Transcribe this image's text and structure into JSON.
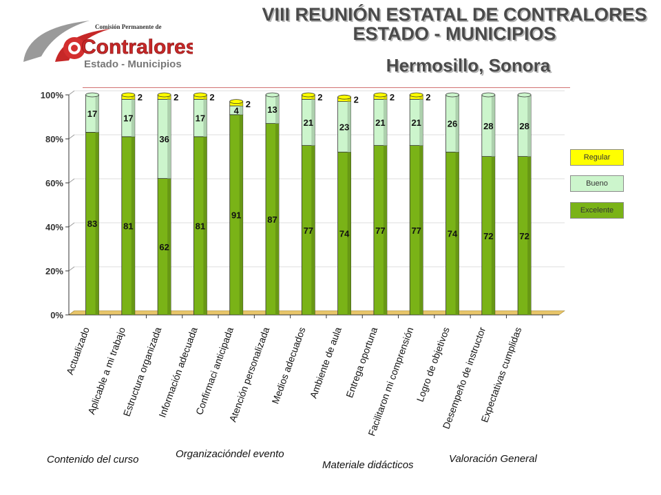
{
  "header": {
    "title_line1": "VIII REUNIÓN ESTATAL DE CONTRALORES",
    "title_line2": "ESTADO - MUNICIPIOS",
    "title_line3": "Hermosillo, Sonora"
  },
  "logo": {
    "line_small": "Comisión Permanente de",
    "line_big": "Contralores",
    "line_sub": "Estado - Municipios"
  },
  "chart_data": {
    "type": "bar",
    "stacked": true,
    "percent": true,
    "categories": [
      "Actualizado",
      "Aplicable a mi trabajo",
      "Estructura organizada",
      "Información adecuada",
      "Confirmaci anticipada",
      "Atención personalizada",
      "Medios adecuados",
      "Ambiente de aula",
      "Entrega oportuna",
      "Facilitaron mi comprensión",
      "Logro de objetivos",
      "Desempeño de instructor",
      "Expectativas cumplidas"
    ],
    "series": [
      {
        "name": "Excelente",
        "color": "#7ab317",
        "values": [
          83,
          81,
          62,
          81,
          91,
          87,
          77,
          74,
          77,
          77,
          74,
          72,
          72
        ]
      },
      {
        "name": "Bueno",
        "color": "#ccf5cc",
        "values": [
          17,
          17,
          36,
          17,
          4,
          13,
          21,
          23,
          21,
          21,
          26,
          28,
          28
        ]
      },
      {
        "name": "Regular",
        "color": "#ffff00",
        "values": [
          0,
          2,
          2,
          2,
          2,
          0,
          2,
          2,
          2,
          2,
          0,
          0,
          0
        ]
      }
    ],
    "value_labels": [
      [
        "83",
        "17",
        ""
      ],
      [
        "81",
        "17",
        "2"
      ],
      [
        "62",
        "36",
        "2"
      ],
      [
        "81",
        "17",
        "2"
      ],
      [
        "91",
        "4",
        "2"
      ],
      [
        "87",
        "13",
        ""
      ],
      [
        "77",
        "21",
        "2"
      ],
      [
        "74",
        "23",
        "2"
      ],
      [
        "77",
        "21",
        "2"
      ],
      [
        "77",
        "21",
        "2"
      ],
      [
        "74",
        "26",
        ""
      ],
      [
        "72",
        "28",
        ""
      ],
      [
        "72",
        "28",
        ""
      ]
    ],
    "y_ticks": [
      "0%",
      "20%",
      "40%",
      "60%",
      "80%",
      "100%"
    ],
    "ylim": [
      0,
      100
    ],
    "legend": {
      "position": "right",
      "items": [
        "Regular",
        "Bueno",
        "Excelente"
      ]
    },
    "groups": [
      "Contenido del curso",
      "Organizacióndel evento",
      "Materiale didácticos",
      "Valoración General"
    ]
  }
}
